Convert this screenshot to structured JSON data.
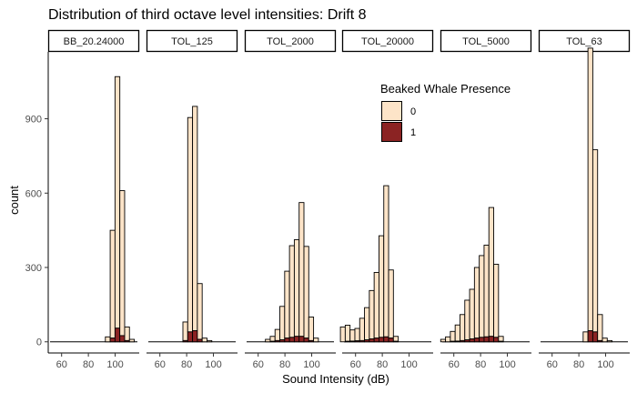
{
  "chart_data": {
    "type": "bar",
    "subtype": "faceted-stacked-histogram",
    "title": "Distribution of third octave level intensities: Drift 8",
    "xlabel": "Sound Intensity (dB)",
    "ylabel": "count",
    "xlim": [
      50,
      118
    ],
    "ylim": [
      -45,
      1170
    ],
    "x_ticks": [
      60,
      80,
      100
    ],
    "y_ticks": [
      0,
      300,
      600,
      900
    ],
    "bin_width": 3.6,
    "legend": {
      "title": "Beaked Whale Presence",
      "position": "inside-top-right",
      "entries": [
        {
          "label": "0",
          "color": "#fde4c8"
        },
        {
          "label": "1",
          "color": "#8b2323"
        }
      ]
    },
    "facets": [
      {
        "name": "BB_20.24000",
        "bins": [
          {
            "x": 94.5,
            "n0": 20,
            "n1": 0
          },
          {
            "x": 98.1,
            "n0": 435,
            "n1": 15
          },
          {
            "x": 101.7,
            "n0": 1015,
            "n1": 55
          },
          {
            "x": 105.3,
            "n0": 585,
            "n1": 25
          },
          {
            "x": 108.9,
            "n0": 55,
            "n1": 5
          },
          {
            "x": 112.5,
            "n0": 10,
            "n1": 0
          }
        ]
      },
      {
        "name": "TOL_125",
        "bins": [
          {
            "x": 79.0,
            "n0": 75,
            "n1": 5
          },
          {
            "x": 82.6,
            "n0": 865,
            "n1": 40
          },
          {
            "x": 86.2,
            "n0": 905,
            "n1": 45
          },
          {
            "x": 89.8,
            "n0": 225,
            "n1": 10
          },
          {
            "x": 93.4,
            "n0": 15,
            "n1": 0
          },
          {
            "x": 97.0,
            "n0": 5,
            "n1": 0
          }
        ]
      },
      {
        "name": "TOL_2000",
        "bins": [
          {
            "x": 67.2,
            "n0": 10,
            "n1": 0
          },
          {
            "x": 70.8,
            "n0": 20,
            "n1": 2
          },
          {
            "x": 74.4,
            "n0": 45,
            "n1": 5
          },
          {
            "x": 78.0,
            "n0": 135,
            "n1": 8
          },
          {
            "x": 81.6,
            "n0": 270,
            "n1": 15
          },
          {
            "x": 85.2,
            "n0": 370,
            "n1": 18
          },
          {
            "x": 88.8,
            "n0": 390,
            "n1": 22
          },
          {
            "x": 92.4,
            "n0": 540,
            "n1": 22
          },
          {
            "x": 96.0,
            "n0": 370,
            "n1": 15
          },
          {
            "x": 99.6,
            "n0": 95,
            "n1": 5
          },
          {
            "x": 103.2,
            "n0": 15,
            "n1": 0
          }
        ]
      },
      {
        "name": "TOL_20000",
        "bins": [
          {
            "x": 50.5,
            "n0": 60,
            "n1": 0
          },
          {
            "x": 54.1,
            "n0": 65,
            "n1": 2
          },
          {
            "x": 57.7,
            "n0": 45,
            "n1": 3
          },
          {
            "x": 61.3,
            "n0": 50,
            "n1": 4
          },
          {
            "x": 64.9,
            "n0": 90,
            "n1": 5
          },
          {
            "x": 68.5,
            "n0": 130,
            "n1": 8
          },
          {
            "x": 72.1,
            "n0": 195,
            "n1": 12
          },
          {
            "x": 75.7,
            "n0": 265,
            "n1": 15
          },
          {
            "x": 79.3,
            "n0": 410,
            "n1": 18
          },
          {
            "x": 82.9,
            "n0": 610,
            "n1": 20
          },
          {
            "x": 86.5,
            "n0": 275,
            "n1": 15
          },
          {
            "x": 90.1,
            "n0": 20,
            "n1": 2
          }
        ]
      },
      {
        "name": "TOL_5000",
        "bins": [
          {
            "x": 52.0,
            "n0": 10,
            "n1": 0
          },
          {
            "x": 55.6,
            "n0": 20,
            "n1": 0
          },
          {
            "x": 59.2,
            "n0": 40,
            "n1": 2
          },
          {
            "x": 62.8,
            "n0": 65,
            "n1": 3
          },
          {
            "x": 66.4,
            "n0": 105,
            "n1": 5
          },
          {
            "x": 70.0,
            "n0": 160,
            "n1": 8
          },
          {
            "x": 73.6,
            "n0": 200,
            "n1": 12
          },
          {
            "x": 77.2,
            "n0": 285,
            "n1": 15
          },
          {
            "x": 80.8,
            "n0": 330,
            "n1": 18
          },
          {
            "x": 84.4,
            "n0": 370,
            "n1": 20
          },
          {
            "x": 88.0,
            "n0": 520,
            "n1": 22
          },
          {
            "x": 91.6,
            "n0": 295,
            "n1": 18
          },
          {
            "x": 95.2,
            "n0": 20,
            "n1": 2
          }
        ]
      },
      {
        "name": "TOL_63",
        "bins": [
          {
            "x": 85.0,
            "n0": 40,
            "n1": 0
          },
          {
            "x": 88.6,
            "n0": 1140,
            "n1": 45
          },
          {
            "x": 92.2,
            "n0": 735,
            "n1": 40
          },
          {
            "x": 95.8,
            "n0": 105,
            "n1": 5
          },
          {
            "x": 99.4,
            "n0": 15,
            "n1": 0
          },
          {
            "x": 103.0,
            "n0": 5,
            "n1": 0
          }
        ]
      }
    ]
  }
}
